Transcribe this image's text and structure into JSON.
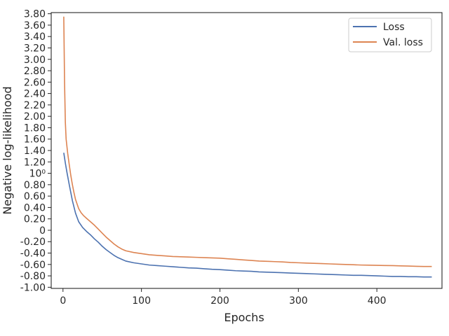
{
  "chart_data": {
    "type": "line",
    "title": "",
    "xlabel": "Epochs",
    "ylabel": "Negative log-likelihood",
    "xlim": [
      -15,
      483
    ],
    "x_ticks": [
      0,
      100,
      200,
      300,
      400
    ],
    "x_tick_labels": [
      "0",
      "100",
      "200",
      "300",
      "400"
    ],
    "ylim": [
      -1.02,
      3.82
    ],
    "y_ticks": [
      -1.0,
      -0.8,
      -0.6,
      -0.4,
      -0.2,
      0,
      0.2,
      0.4,
      0.6,
      0.8,
      1.0,
      1.2,
      1.4,
      1.6,
      1.8,
      2.0,
      2.2,
      2.4,
      2.6,
      2.8,
      3.0,
      3.2,
      3.4,
      3.6,
      3.8
    ],
    "y_tick_labels": [
      "-1.00",
      "-0.80",
      "-0.60",
      "-0.40",
      "-0.20",
      "0",
      "0.20",
      "0.40",
      "0.60",
      "0.80",
      "10⁰",
      "1.20",
      "1.40",
      "1.60",
      "1.80",
      "2.00",
      "2.20",
      "2.40",
      "2.60",
      "2.80",
      "3.00",
      "3.20",
      "3.40",
      "3.60",
      "3.80"
    ],
    "grid": false,
    "legend_position": "top-right",
    "series": [
      {
        "name": "Loss",
        "color": "#4c72b0",
        "x": [
          1,
          3,
          5,
          8,
          12,
          16,
          20,
          25,
          30,
          35,
          40,
          45,
          50,
          55,
          60,
          65,
          70,
          75,
          80,
          90,
          100,
          110,
          120,
          130,
          140,
          150,
          160,
          170,
          180,
          190,
          200,
          210,
          220,
          230,
          240,
          250,
          260,
          270,
          280,
          290,
          300,
          310,
          320,
          330,
          340,
          350,
          360,
          370,
          380,
          390,
          400,
          410,
          420,
          430,
          440,
          450,
          460,
          470
        ],
        "y": [
          1.36,
          1.18,
          1.02,
          0.8,
          0.52,
          0.3,
          0.15,
          0.05,
          -0.02,
          -0.08,
          -0.15,
          -0.21,
          -0.28,
          -0.34,
          -0.39,
          -0.44,
          -0.48,
          -0.51,
          -0.54,
          -0.57,
          -0.59,
          -0.61,
          -0.62,
          -0.63,
          -0.64,
          -0.65,
          -0.66,
          -0.665,
          -0.675,
          -0.685,
          -0.69,
          -0.7,
          -0.71,
          -0.715,
          -0.72,
          -0.73,
          -0.735,
          -0.74,
          -0.745,
          -0.75,
          -0.755,
          -0.76,
          -0.765,
          -0.77,
          -0.775,
          -0.78,
          -0.785,
          -0.79,
          -0.79,
          -0.795,
          -0.8,
          -0.805,
          -0.81,
          -0.81,
          -0.815,
          -0.815,
          -0.82,
          -0.82
        ]
      },
      {
        "name": "Val. loss",
        "color": "#dd8452",
        "x": [
          1,
          2,
          3,
          4,
          6,
          8,
          10,
          12,
          14,
          16,
          18,
          20,
          23,
          26,
          30,
          35,
          40,
          45,
          50,
          55,
          60,
          65,
          70,
          75,
          80,
          90,
          100,
          110,
          120,
          130,
          140,
          150,
          160,
          170,
          180,
          190,
          200,
          210,
          220,
          230,
          240,
          250,
          260,
          270,
          280,
          290,
          300,
          310,
          320,
          330,
          340,
          350,
          360,
          370,
          380,
          390,
          400,
          410,
          420,
          430,
          440,
          450,
          460,
          470
        ],
        "y": [
          3.75,
          2.6,
          1.9,
          1.6,
          1.35,
          1.15,
          0.96,
          0.8,
          0.66,
          0.54,
          0.46,
          0.38,
          0.31,
          0.26,
          0.21,
          0.15,
          0.09,
          0.02,
          -0.05,
          -0.12,
          -0.18,
          -0.24,
          -0.29,
          -0.33,
          -0.36,
          -0.39,
          -0.41,
          -0.43,
          -0.44,
          -0.45,
          -0.46,
          -0.465,
          -0.47,
          -0.475,
          -0.48,
          -0.485,
          -0.49,
          -0.5,
          -0.51,
          -0.52,
          -0.53,
          -0.54,
          -0.545,
          -0.55,
          -0.555,
          -0.565,
          -0.57,
          -0.575,
          -0.58,
          -0.585,
          -0.59,
          -0.595,
          -0.6,
          -0.605,
          -0.61,
          -0.612,
          -0.615,
          -0.618,
          -0.62,
          -0.625,
          -0.628,
          -0.632,
          -0.635,
          -0.635
        ]
      }
    ]
  }
}
